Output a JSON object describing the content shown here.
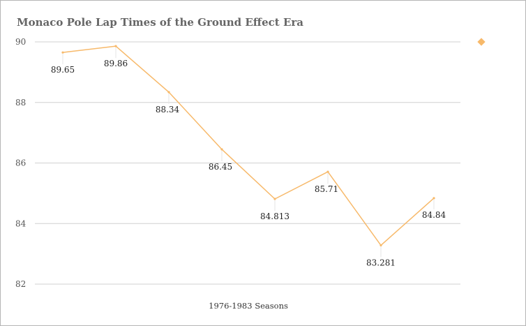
{
  "chart_data": {
    "type": "line",
    "title": "Monaco Pole Lap Times of the Ground Effect Era",
    "xlabel": "1976-1983 Seasons",
    "ylabel": "",
    "ylim": [
      82,
      90
    ],
    "yticks": [
      90,
      88,
      86,
      84,
      82
    ],
    "grid": true,
    "legend_position": "top-right",
    "series": [
      {
        "name": "",
        "color": "#f7b96a",
        "values": [
          89.65,
          89.86,
          88.34,
          86.45,
          84.813,
          85.71,
          83.281,
          84.84
        ],
        "labels": [
          "89.65",
          "89.86",
          "88.34",
          "86.45",
          "84.813",
          "85.71",
          "83.281",
          "84.84"
        ]
      }
    ]
  }
}
